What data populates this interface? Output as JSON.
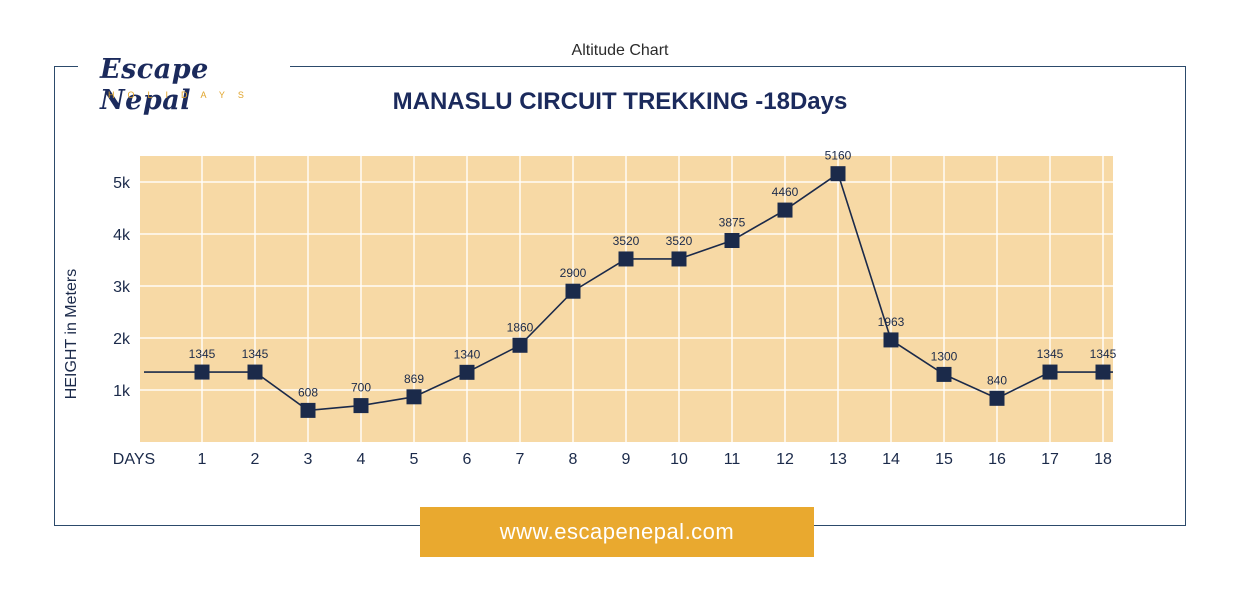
{
  "page_label": "Altitude Chart",
  "logo": {
    "brand": "Escape Nepal",
    "sub": "HOLIDAYS"
  },
  "footer": {
    "url": "www.escapenepal.com"
  },
  "colors": {
    "plot_bg": "#f7d9a5",
    "line": "#1b2a4a",
    "marker": "#1b2a4a",
    "accent": "#e9a92f",
    "title": "#1b2a5c"
  },
  "chart_data": {
    "type": "line",
    "title": "MANASLU CIRCUIT TREKKING -18Days",
    "xlabel": "DAYS",
    "ylabel": "HEIGHT in Meters",
    "categories": [
      "1",
      "2",
      "3",
      "4",
      "5",
      "6",
      "7",
      "8",
      "9",
      "10",
      "11",
      "12",
      "13",
      "14",
      "15",
      "16",
      "17",
      "18"
    ],
    "series": [
      {
        "values": [
          1345,
          1345,
          608,
          700,
          869,
          1340,
          1860,
          2900,
          3520,
          3520,
          3875,
          4460,
          5160,
          1963,
          1300,
          840,
          1345,
          1345
        ]
      }
    ],
    "data_labels": [
      "1345",
      "1345",
      "608",
      "700",
      "869",
      "1340",
      "1860",
      "2900",
      "3520",
      "3520",
      "3875",
      "4460",
      "5160",
      "1963",
      "1300",
      "840",
      "1345",
      "1345"
    ],
    "y_ticks": [
      1000,
      2000,
      3000,
      4000,
      5000
    ],
    "y_tick_labels": [
      "1k",
      "2k",
      "3k",
      "4k",
      "5k"
    ],
    "ylim": [
      0,
      5500
    ],
    "grid": true,
    "marker": "square"
  }
}
